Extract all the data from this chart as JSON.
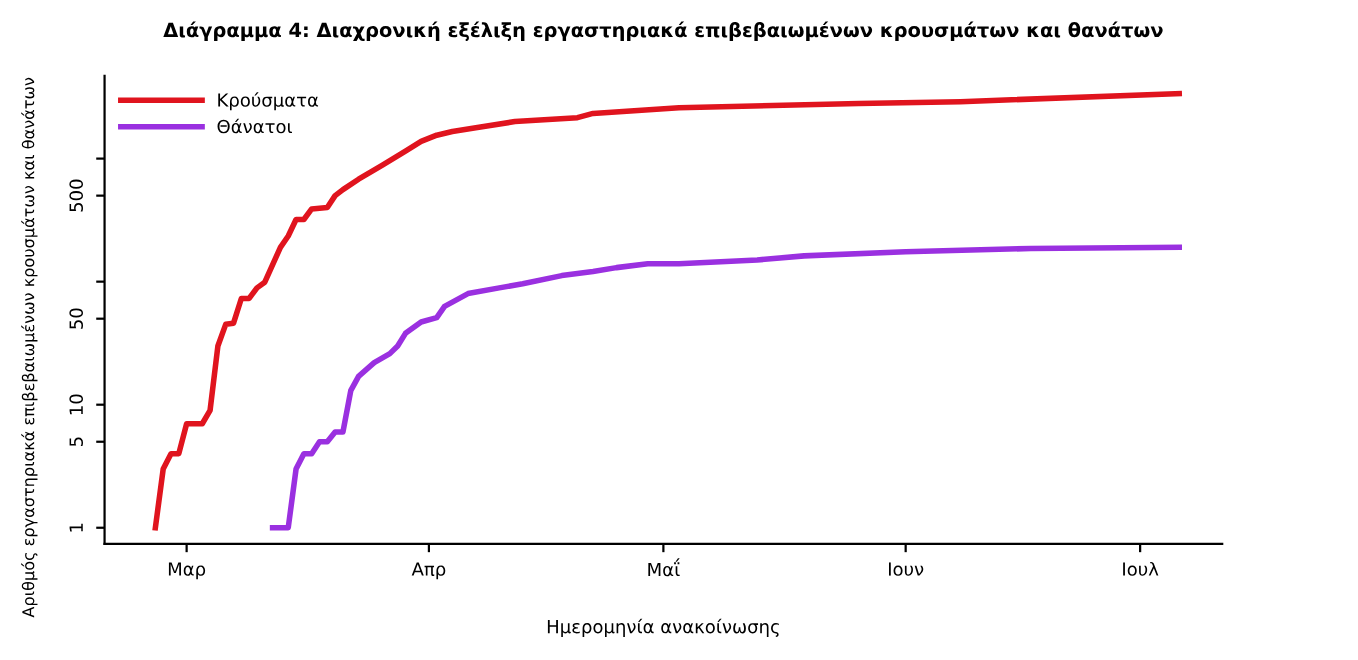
{
  "chart_data": {
    "type": "line",
    "title": "Διάγραμμα 4: Διαχρονική εξέλιξη εργαστηριακά επιβεβαιωμένων κρουσμάτων και θανάτων",
    "xlabel": "Ημερομηνία ανακοίνωσης",
    "ylabel": "Αριθμός εργαστηριακά επιβεβαιωμένων κρουσμάτων και θανάτων",
    "log": "y",
    "categories": [
      null,
      null,
      null,
      null,
      null,
      null,
      null,
      null,
      null,
      null,
      "Μαρ",
      null,
      null,
      null,
      null,
      null,
      null,
      null,
      null,
      null,
      null,
      null,
      null,
      null,
      null,
      null,
      null,
      null,
      null,
      null,
      null,
      null,
      null,
      null,
      null,
      null,
      null,
      null,
      null,
      null,
      null,
      "Απρ",
      null,
      null,
      null,
      null,
      null,
      null,
      null,
      null,
      null,
      null,
      null,
      null,
      null,
      null,
      null,
      null,
      null,
      null,
      null,
      null,
      null,
      null,
      null,
      null,
      null,
      null,
      null,
      null,
      null,
      "Μαΐ",
      null,
      null,
      null,
      null,
      null,
      null,
      null,
      null,
      null,
      null,
      null,
      null,
      null,
      null,
      null,
      null,
      null,
      null,
      null,
      null,
      null,
      null,
      null,
      null,
      null,
      null,
      null,
      null,
      null,
      null,
      "Ιουν",
      null,
      null,
      null,
      null,
      null,
      null,
      null,
      null,
      null,
      null,
      null,
      null,
      null,
      null,
      null,
      null,
      null,
      null,
      null,
      null,
      null,
      null,
      null,
      null,
      null,
      null,
      null,
      null,
      null,
      "Ιουλ",
      null,
      null,
      null,
      null,
      null,
      null,
      null,
      null,
      null,
      null
    ],
    "ylim": [
      0.74,
      4700
    ],
    "yticks": [
      1,
      5,
      10,
      50,
      {
        "value": 100,
        "label": null
      },
      500,
      {
        "value": 1000,
        "label": null
      }
    ],
    "grid": false,
    "legend": "top left",
    "line_style": "solid",
    "series": [
      {
        "name": "Κρούσματα",
        "color": "#e0141e",
        "values": [
          null,
          null,
          null,
          null,
          null,
          null,
          1,
          3,
          4,
          4,
          7,
          null,
          7,
          9,
          30,
          45,
          46,
          73,
          73,
          89,
          99,
          null,
          190,
          235,
          320,
          320,
          390,
          null,
          400,
          500,
          560,
          null,
          680,
          null,
          null,
          880,
          null,
          null,
          1150,
          null,
          1380,
          null,
          1550,
          null,
          1660,
          null,
          null,
          1780,
          null,
          null,
          null,
          null,
          2000,
          null,
          null,
          null,
          null,
          null,
          null,
          null,
          2150,
          null,
          2330,
          null,
          null,
          null,
          null,
          null,
          null,
          null,
          null,
          null,
          null,
          2590,
          null,
          null,
          null,
          null,
          null,
          null,
          null,
          null,
          null,
          null,
          null,
          null,
          null,
          null,
          null,
          null,
          null,
          null,
          null,
          null,
          null,
          null,
          2800,
          null,
          null,
          null,
          null,
          null,
          null,
          null,
          null,
          null,
          null,
          null,
          null,
          2900,
          null,
          null,
          null,
          null,
          null,
          null,
          null,
          null,
          null,
          null,
          null,
          null,
          null,
          null,
          null,
          null,
          null,
          null,
          null,
          null,
          null,
          null,
          null,
          null,
          null,
          null,
          null,
          3380,
          null,
          null,
          null,
          null,
          null
        ]
      },
      {
        "name": "Θάνατοι",
        "color": "#9a30e0",
        "values": [
          null,
          null,
          null,
          null,
          null,
          null,
          null,
          null,
          null,
          null,
          null,
          null,
          null,
          null,
          null,
          null,
          null,
          null,
          null,
          null,
          null,
          1,
          null,
          1,
          3,
          4,
          4,
          5,
          5,
          6,
          6,
          13,
          17,
          null,
          22,
          null,
          26,
          30,
          38,
          null,
          47,
          null,
          51,
          63,
          null,
          null,
          80,
          null,
          null,
          null,
          89,
          null,
          null,
          96,
          null,
          null,
          null,
          null,
          112,
          null,
          null,
          null,
          121,
          null,
          null,
          130,
          null,
          null,
          null,
          140,
          null,
          null,
          null,
          140,
          null,
          null,
          null,
          null,
          null,
          null,
          null,
          null,
          null,
          150,
          null,
          null,
          null,
          null,
          null,
          162,
          null,
          null,
          null,
          null,
          null,
          null,
          null,
          null,
          null,
          null,
          null,
          null,
          175,
          null,
          null,
          null,
          null,
          null,
          null,
          null,
          null,
          null,
          null,
          null,
          null,
          null,
          null,
          null,
          186,
          null,
          null,
          null,
          null,
          null,
          null,
          null,
          null,
          null,
          null,
          null,
          null,
          null,
          null,
          null,
          null,
          null,
          null,
          190,
          null,
          null,
          null,
          null,
          null
        ]
      }
    ]
  }
}
